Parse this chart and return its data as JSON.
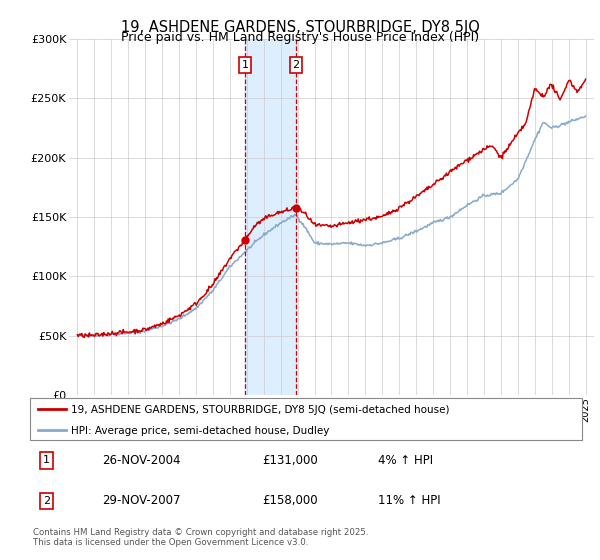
{
  "title": "19, ASHDENE GARDENS, STOURBRIDGE, DY8 5JQ",
  "subtitle": "Price paid vs. HM Land Registry's House Price Index (HPI)",
  "legend_line1": "19, ASHDENE GARDENS, STOURBRIDGE, DY8 5JQ (semi-detached house)",
  "legend_line2": "HPI: Average price, semi-detached house, Dudley",
  "footnote": "Contains HM Land Registry data © Crown copyright and database right 2025.\nThis data is licensed under the Open Government Licence v3.0.",
  "transactions": [
    {
      "num": 1,
      "date": "26-NOV-2004",
      "price": "£131,000",
      "hpi": "4% ↑ HPI"
    },
    {
      "num": 2,
      "date": "29-NOV-2007",
      "price": "£158,000",
      "hpi": "11% ↑ HPI"
    }
  ],
  "vline1_year": 2004.9,
  "vline2_year": 2007.9,
  "marker1_year": 2004.9,
  "marker1_val": 131000,
  "marker2_year": 2007.9,
  "marker2_val": 158000,
  "ylim": [
    0,
    300000
  ],
  "xlim": [
    1994.5,
    2025.5
  ],
  "yticks": [
    0,
    50000,
    100000,
    150000,
    200000,
    250000,
    300000
  ],
  "ytick_labels": [
    "£0",
    "£50K",
    "£100K",
    "£150K",
    "£200K",
    "£250K",
    "£300K"
  ],
  "red_color": "#cc0000",
  "blue_color": "#88aacc",
  "shade_color": "#ddeeff",
  "background_color": "#ffffff",
  "grid_color": "#cccccc",
  "hpi_keypoints_x": [
    1995,
    1996,
    1997,
    1998,
    1999,
    2000,
    2001,
    2002,
    2003,
    2004,
    2005,
    2006,
    2007,
    2007.9,
    2008.5,
    2009,
    2010,
    2011,
    2012,
    2013,
    2014,
    2015,
    2016,
    2017,
    2018,
    2019,
    2020,
    2021,
    2022,
    2022.5,
    2023,
    2024,
    2025
  ],
  "hpi_keypoints_y": [
    50000,
    50000,
    51000,
    52000,
    54000,
    58000,
    64000,
    73000,
    88000,
    108000,
    122000,
    135000,
    145000,
    152000,
    140000,
    128000,
    127000,
    128000,
    126000,
    128000,
    132000,
    138000,
    145000,
    150000,
    160000,
    168000,
    170000,
    182000,
    215000,
    230000,
    225000,
    230000,
    235000
  ],
  "red_keypoints_x": [
    1995,
    1996,
    1997,
    1998,
    1999,
    2000,
    2001,
    2002,
    2003,
    2004,
    2004.9,
    2005.5,
    2006,
    2006.5,
    2007.5,
    2007.9,
    2008.5,
    2009,
    2010,
    2011,
    2012,
    2013,
    2014,
    2015,
    2016,
    2017,
    2018,
    2019,
    2019.5,
    2020,
    2020.5,
    2021,
    2021.5,
    2022,
    2022.5,
    2023,
    2023.5,
    2024,
    2024.5,
    2025
  ],
  "red_keypoints_y": [
    50000,
    50000,
    52000,
    53000,
    55000,
    60000,
    67000,
    77000,
    93000,
    115000,
    131000,
    143000,
    148000,
    152000,
    156000,
    158000,
    152000,
    143000,
    142000,
    145000,
    148000,
    150000,
    158000,
    167000,
    177000,
    188000,
    198000,
    207000,
    210000,
    200000,
    210000,
    220000,
    230000,
    258000,
    252000,
    262000,
    248000,
    266000,
    256000,
    265000
  ]
}
